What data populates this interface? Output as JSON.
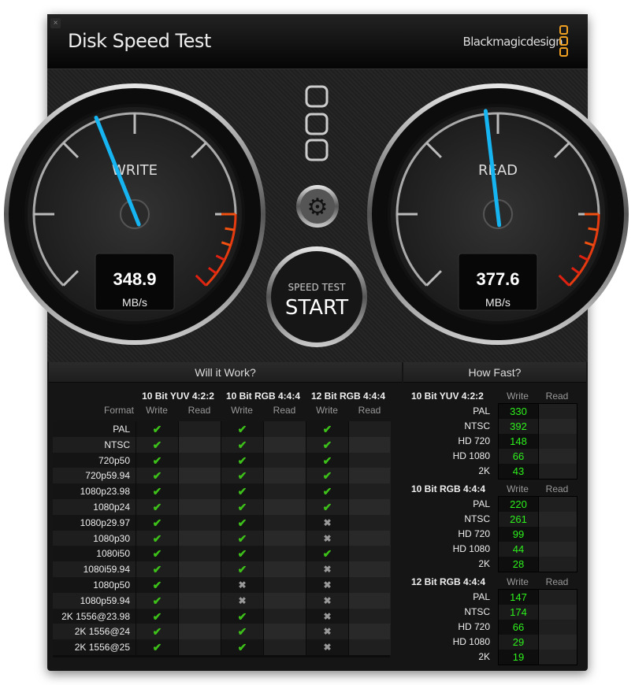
{
  "window": {
    "title": "Disk Speed Test",
    "brand": "Blackmagicdesign",
    "close_icon": "close-icon"
  },
  "gauges": {
    "write": {
      "label": "WRITE",
      "value": "348.9",
      "unit": "MB/s",
      "reading": 348.9
    },
    "read": {
      "label": "READ",
      "value": "377.6",
      "unit": "MB/s",
      "reading": 377.6
    },
    "needle_color": "#16b4f0"
  },
  "start_button": {
    "line1": "SPEED TEST",
    "line2": "START"
  },
  "settings_icon": "gear-icon",
  "will_it_work": {
    "title": "Will it Work?",
    "format_header": "Format",
    "groups": [
      "10 Bit YUV 4:2:2",
      "10 Bit RGB 4:4:4",
      "12 Bit RGB 4:4:4"
    ],
    "write_label": "Write",
    "read_label": "Read",
    "rows": [
      {
        "format": "PAL",
        "write": [
          true,
          true,
          true
        ]
      },
      {
        "format": "NTSC",
        "write": [
          true,
          true,
          true
        ]
      },
      {
        "format": "720p50",
        "write": [
          true,
          true,
          true
        ]
      },
      {
        "format": "720p59.94",
        "write": [
          true,
          true,
          true
        ]
      },
      {
        "format": "1080p23.98",
        "write": [
          true,
          true,
          true
        ]
      },
      {
        "format": "1080p24",
        "write": [
          true,
          true,
          true
        ]
      },
      {
        "format": "1080p29.97",
        "write": [
          true,
          true,
          false
        ]
      },
      {
        "format": "1080p30",
        "write": [
          true,
          true,
          false
        ]
      },
      {
        "format": "1080i50",
        "write": [
          true,
          true,
          true
        ]
      },
      {
        "format": "1080i59.94",
        "write": [
          true,
          true,
          false
        ]
      },
      {
        "format": "1080p50",
        "write": [
          true,
          false,
          false
        ]
      },
      {
        "format": "1080p59.94",
        "write": [
          true,
          false,
          false
        ]
      },
      {
        "format": "2K 1556@23.98",
        "write": [
          true,
          true,
          false
        ]
      },
      {
        "format": "2K 1556@24",
        "write": [
          true,
          true,
          false
        ]
      },
      {
        "format": "2K 1556@25",
        "write": [
          true,
          true,
          false
        ]
      }
    ],
    "check_symbol": "✔",
    "cross_symbol": "✖"
  },
  "how_fast": {
    "title": "How Fast?",
    "write_label": "Write",
    "read_label": "Read",
    "sections": [
      {
        "name": "10 Bit YUV 4:2:2",
        "rows": [
          {
            "format": "PAL",
            "write": "330"
          },
          {
            "format": "NTSC",
            "write": "392"
          },
          {
            "format": "HD 720",
            "write": "148"
          },
          {
            "format": "HD 1080",
            "write": "66"
          },
          {
            "format": "2K",
            "write": "43"
          }
        ]
      },
      {
        "name": "10 Bit RGB 4:4:4",
        "rows": [
          {
            "format": "PAL",
            "write": "220"
          },
          {
            "format": "NTSC",
            "write": "261"
          },
          {
            "format": "HD 720",
            "write": "99"
          },
          {
            "format": "HD 1080",
            "write": "44"
          },
          {
            "format": "2K",
            "write": "28"
          }
        ]
      },
      {
        "name": "12 Bit RGB 4:4:4",
        "rows": [
          {
            "format": "PAL",
            "write": "147"
          },
          {
            "format": "NTSC",
            "write": "174"
          },
          {
            "format": "HD 720",
            "write": "66"
          },
          {
            "format": "HD 1080",
            "write": "29"
          },
          {
            "format": "2K",
            "write": "19"
          }
        ]
      }
    ]
  }
}
